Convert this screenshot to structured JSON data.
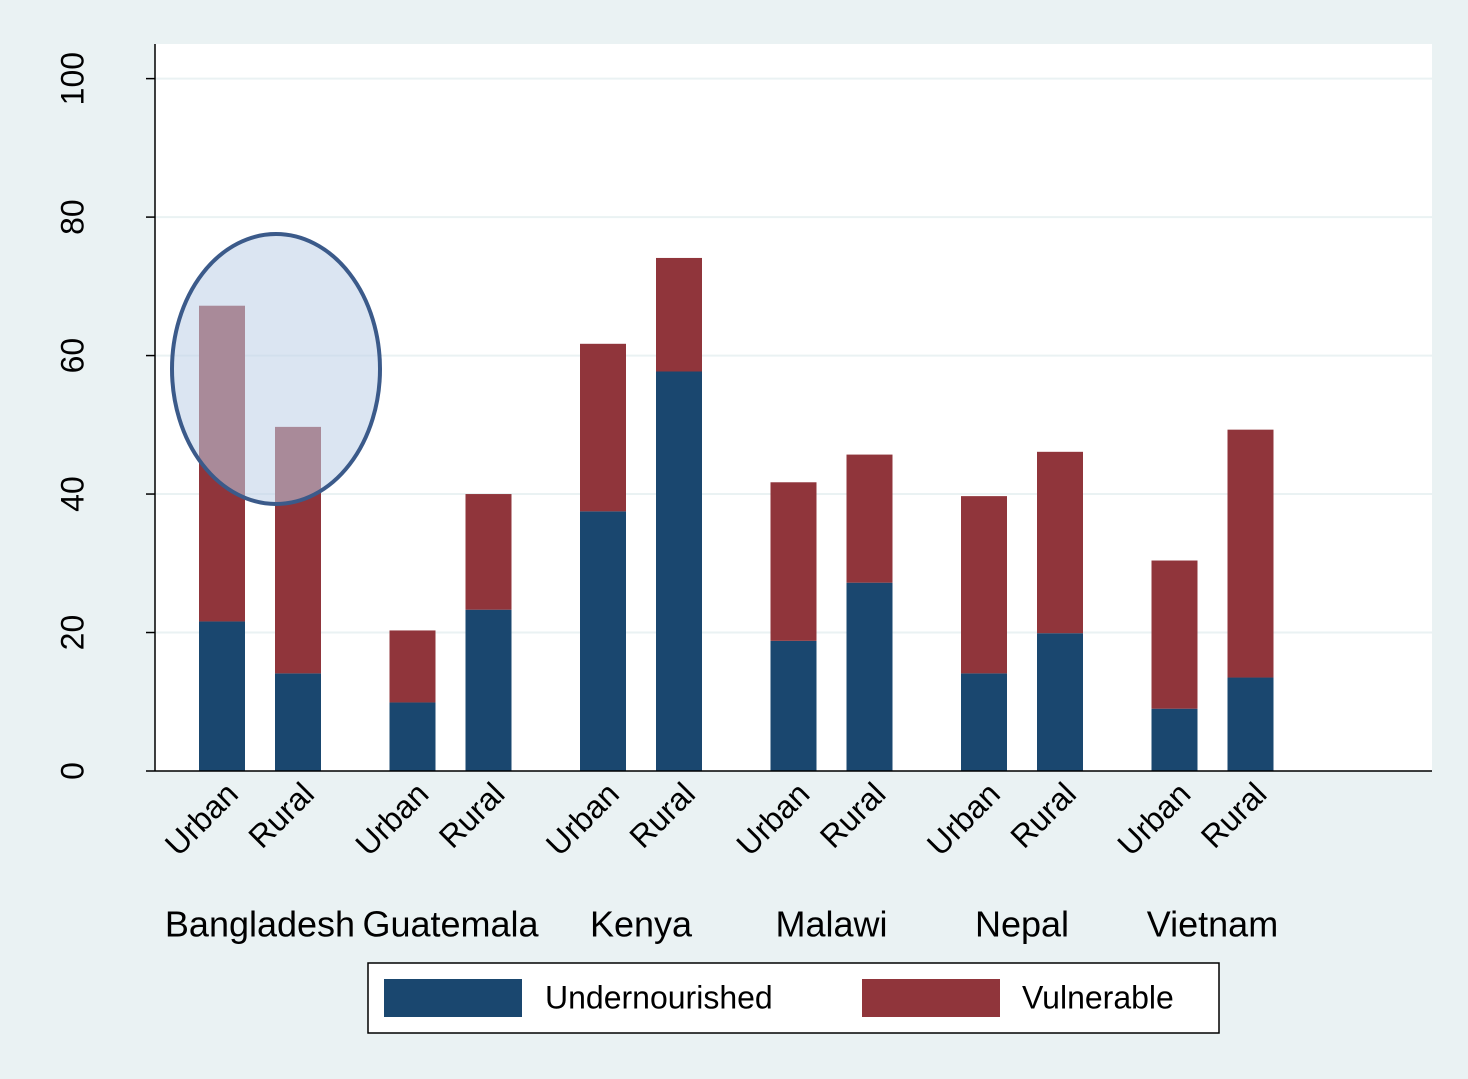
{
  "chart_data": {
    "type": "stacked_bar",
    "groups": [
      "Bangladesh",
      "Guatemala",
      "Kenya",
      "Malawi",
      "Nepal",
      "Vietnam"
    ],
    "categories": [
      "Urban",
      "Rural",
      "Urban",
      "Rural",
      "Urban",
      "Rural",
      "Urban",
      "Rural",
      "Urban",
      "Rural",
      "Urban",
      "Rural"
    ],
    "series": [
      {
        "name": "Undernourished",
        "color": "#1a476f",
        "values": [
          21.6,
          14.1,
          9.9,
          23.3,
          37.5,
          57.7,
          18.8,
          27.2,
          14.1,
          19.9,
          9.0,
          13.5
        ]
      },
      {
        "name": "Vulnerable",
        "color": "#90353b",
        "values": [
          45.6,
          35.6,
          10.4,
          16.7,
          24.2,
          16.4,
          22.9,
          18.5,
          25.6,
          26.2,
          21.4,
          35.8
        ]
      }
    ],
    "ylim": [
      0,
      105
    ],
    "yticks": [
      0,
      20,
      40,
      60,
      80,
      100
    ],
    "grid": true,
    "legend": "bottom"
  }
}
